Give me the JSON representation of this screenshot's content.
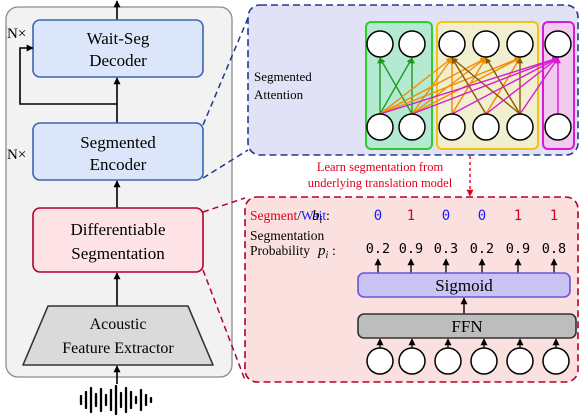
{
  "encoder_stack": {
    "decoder_label_line1": "Wait-Seg",
    "decoder_label_line2": "Decoder",
    "decoder_repeat": "N×",
    "encoder_label_line1": "Segmented",
    "encoder_label_line2": "Encoder",
    "encoder_repeat": "N×",
    "segmentation_label_line1": "Differentiable",
    "segmentation_label_line2": "Segmentation",
    "extractor_label_line1": "Acoustic",
    "extractor_label_line2": "Feature Extractor"
  },
  "attention_panel": {
    "title_line1": "Segmented",
    "title_line2": "Attention"
  },
  "bridge_note": {
    "line1": "Learn segmentation from",
    "line2": "underlying translation model"
  },
  "segmentation_panel": {
    "segment_word": "Segment",
    "slash": "/",
    "wait_word": "Wait",
    "b_symbol": "b",
    "b_subscript": "i",
    "colon": ":",
    "prob_label_line1": "Segmentation",
    "prob_label_line2": "Probability",
    "p_symbol": "p",
    "p_subscript": "i",
    "decisions": [
      "0",
      "1",
      "0",
      "0",
      "1",
      "1"
    ],
    "probabilities": [
      "0.2",
      "0.9",
      "0.3",
      "0.2",
      "0.9",
      "0.8"
    ],
    "sigmoid_label": "Sigmoid",
    "ffn_label": "FFN"
  },
  "colors": {
    "segment_red": "#e0001a",
    "wait_blue": "#1a1aff",
    "block_blue_fill": "#dce6fb",
    "block_blue_stroke": "#3c63b4",
    "seg_block_fill": "#fde2e6",
    "seg_block_stroke": "#b3002d",
    "attention_bg": "#e2e2f6",
    "attention_border": "#1f3b8f",
    "segpanel_bg": "#fbe0e0",
    "segpanel_border": "#b3002d",
    "sigmoid_fill": "#c9c4f4",
    "sigmoid_stroke": "#6a55d8",
    "ffn_fill": "#bdbdbd",
    "group_green": "#2ecc2e",
    "group_yellow": "#f1c40f",
    "group_magenta": "#d81bd0"
  }
}
